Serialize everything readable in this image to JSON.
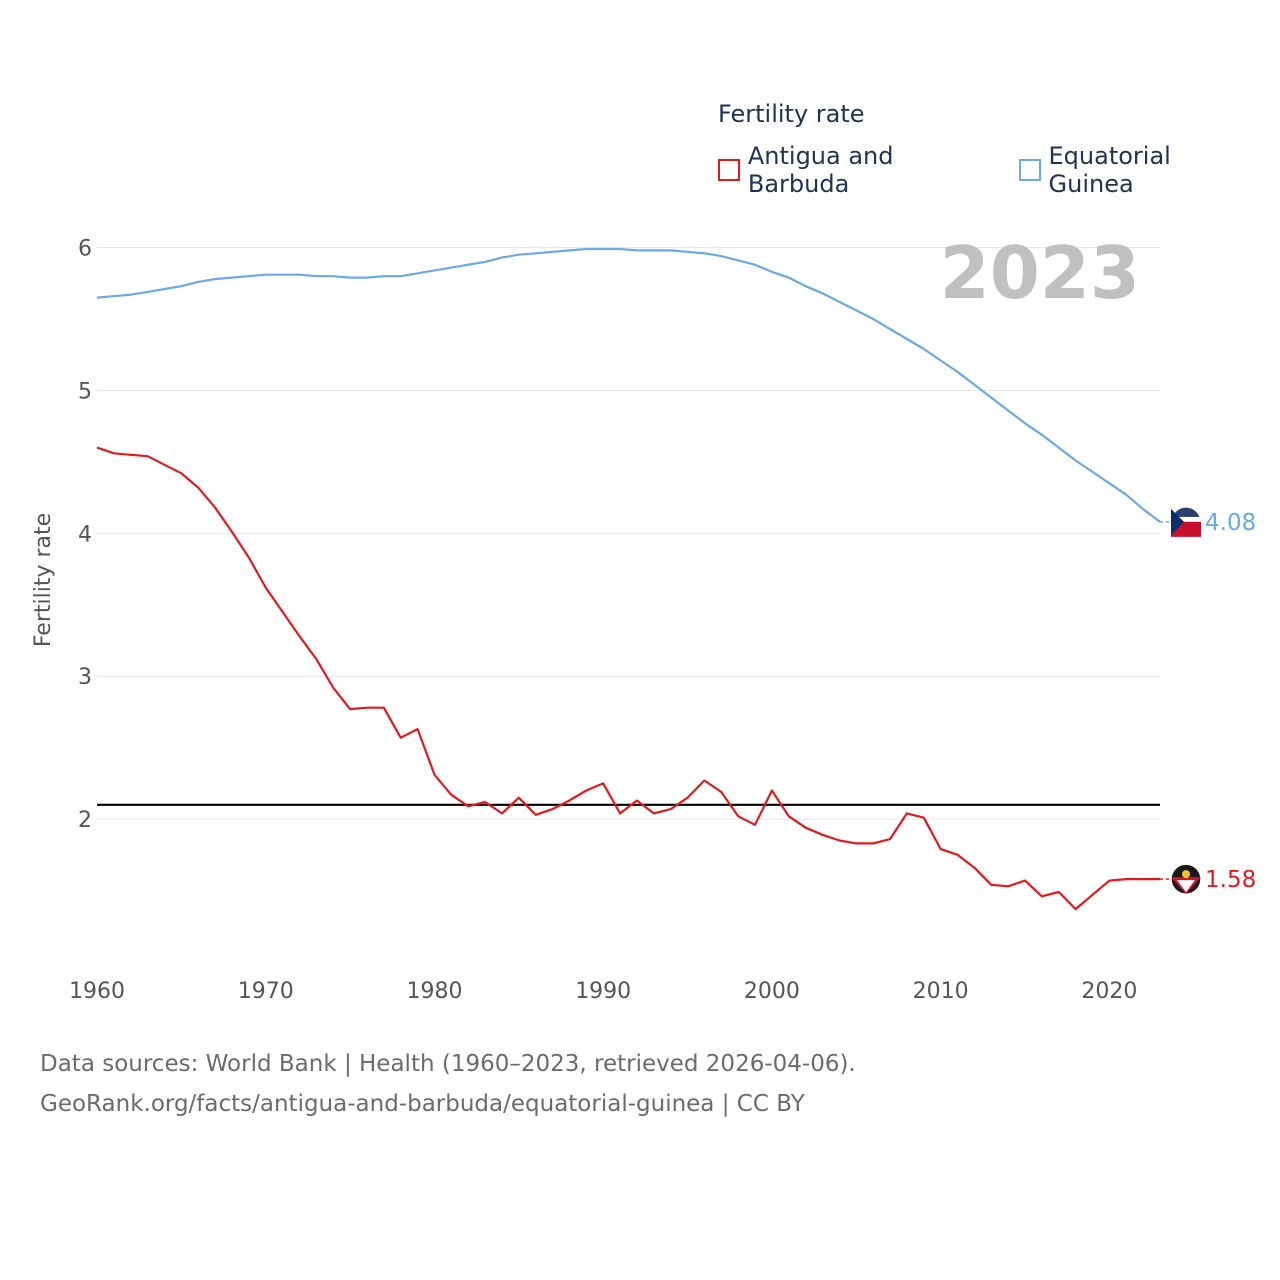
{
  "legend": {
    "title": "Fertility rate",
    "items": [
      {
        "label": "Antigua and Barbuda",
        "color": "#e31a1c"
      },
      {
        "label": "Equatorial Guinea",
        "color": "#6aaae4"
      }
    ]
  },
  "sources": {
    "line1": "Data sources: World Bank | Health (1960–2023, retrieved 2026-04-06).",
    "line2": "GeoRank.org/facts/antigua-and-barbuda/equatorial-guinea | CC BY"
  },
  "chart_data": {
    "type": "line",
    "title": "Fertility rate",
    "year_label": "2023",
    "ylabel": "Fertility rate",
    "xlabel": "",
    "xlim": [
      1960,
      2023
    ],
    "ylim": [
      1.0,
      6.2
    ],
    "xticks": [
      1960,
      1970,
      1980,
      1990,
      2000,
      2010,
      2020
    ],
    "yticks": [
      2,
      3,
      4,
      5,
      6
    ],
    "grid": true,
    "reference_line": {
      "value": 2.1,
      "color": "#000000"
    },
    "x": [
      1960,
      1961,
      1962,
      1963,
      1964,
      1965,
      1966,
      1967,
      1968,
      1969,
      1970,
      1971,
      1972,
      1973,
      1974,
      1975,
      1976,
      1977,
      1978,
      1979,
      1980,
      1981,
      1982,
      1983,
      1984,
      1985,
      1986,
      1987,
      1988,
      1989,
      1990,
      1991,
      1992,
      1993,
      1994,
      1995,
      1996,
      1997,
      1998,
      1999,
      2000,
      2001,
      2002,
      2003,
      2004,
      2005,
      2006,
      2007,
      2008,
      2009,
      2010,
      2011,
      2012,
      2013,
      2014,
      2015,
      2016,
      2017,
      2018,
      2019,
      2020,
      2021,
      2022,
      2023
    ],
    "series": [
      {
        "name": "Antigua and Barbuda",
        "color": "#e31a1c",
        "end_label": "1.58",
        "values": [
          4.6,
          4.56,
          4.55,
          4.54,
          4.48,
          4.42,
          4.32,
          4.18,
          4.01,
          3.83,
          3.62,
          3.45,
          3.28,
          3.12,
          2.92,
          2.77,
          2.78,
          2.78,
          2.57,
          2.63,
          2.31,
          2.17,
          2.09,
          2.12,
          2.04,
          2.15,
          2.03,
          2.07,
          2.13,
          2.2,
          2.25,
          2.04,
          2.13,
          2.04,
          2.07,
          2.15,
          2.27,
          2.19,
          2.02,
          1.96,
          2.2,
          2.02,
          1.94,
          1.89,
          1.85,
          1.83,
          1.83,
          1.86,
          2.04,
          2.01,
          1.79,
          1.75,
          1.66,
          1.54,
          1.53,
          1.57,
          1.46,
          1.49,
          1.37,
          1.47,
          1.57,
          1.58,
          1.58,
          1.58
        ]
      },
      {
        "name": "Equatorial Guinea",
        "color": "#6aaae4",
        "end_label": "4.08",
        "values": [
          5.65,
          5.66,
          5.67,
          5.69,
          5.71,
          5.73,
          5.76,
          5.78,
          5.79,
          5.8,
          5.81,
          5.81,
          5.81,
          5.8,
          5.8,
          5.79,
          5.79,
          5.8,
          5.8,
          5.82,
          5.84,
          5.86,
          5.88,
          5.9,
          5.93,
          5.95,
          5.96,
          5.97,
          5.98,
          5.99,
          5.99,
          5.99,
          5.98,
          5.98,
          5.98,
          5.97,
          5.96,
          5.94,
          5.91,
          5.88,
          5.83,
          5.79,
          5.73,
          5.68,
          5.62,
          5.56,
          5.5,
          5.43,
          5.36,
          5.29,
          5.21,
          5.13,
          5.04,
          4.95,
          4.86,
          4.77,
          4.69,
          4.6,
          4.51,
          4.43,
          4.35,
          4.27,
          4.17,
          4.08
        ]
      }
    ]
  }
}
